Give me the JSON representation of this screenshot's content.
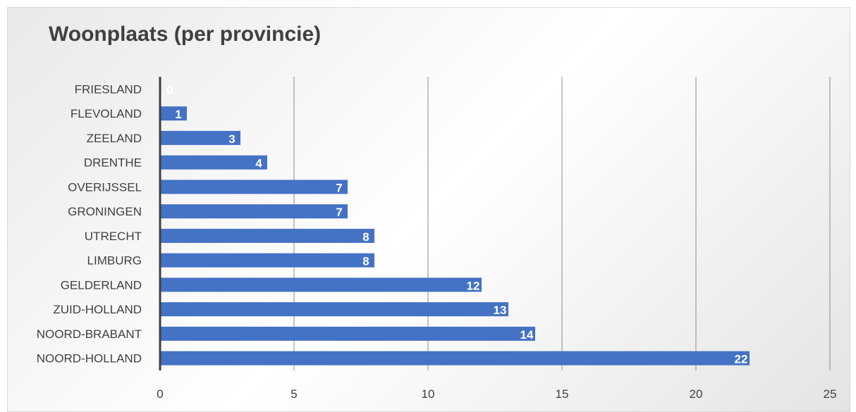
{
  "chart_data": {
    "type": "bar",
    "orientation": "horizontal",
    "title": "Woonplaats (per provincie)",
    "categories": [
      "NOORD-HOLLAND",
      "NOORD-BRABANT",
      "ZUID-HOLLAND",
      "GELDERLAND",
      "LIMBURG",
      "UTRECHT",
      "GRONINGEN",
      "OVERIJSSEL",
      "DRENTHE",
      "ZEELAND",
      "FLEVOLAND",
      "FRIESLAND"
    ],
    "values": [
      22,
      14,
      13,
      12,
      8,
      8,
      7,
      7,
      4,
      3,
      1,
      0
    ],
    "xlim": [
      0,
      25
    ],
    "xticks": [
      0,
      5,
      10,
      15,
      20,
      25
    ],
    "grid": true,
    "legend": "none",
    "bar_color": "#4472c4",
    "data_labels": true
  }
}
